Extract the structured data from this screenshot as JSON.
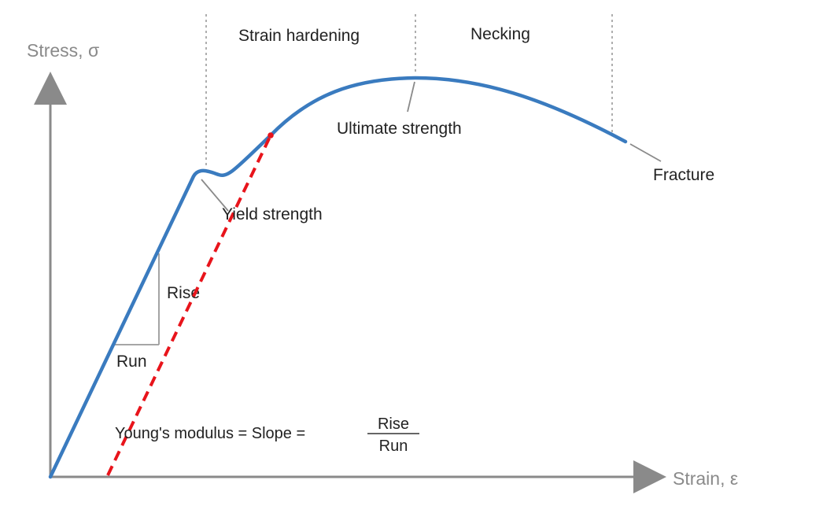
{
  "axes": {
    "y_label": "Stress, σ",
    "x_label": "Strain, ε"
  },
  "regions": {
    "strain_hardening": "Strain hardening",
    "necking": "Necking"
  },
  "annotations": {
    "ultimate_strength": "Ultimate strength",
    "yield_strength": "Yield strength",
    "fracture": "Fracture",
    "rise": "Rise",
    "run": "Run"
  },
  "formula": {
    "lhs": "Young's modulus = Slope =",
    "numerator": "Rise",
    "denominator": "Run"
  },
  "colors": {
    "curve": "#3a7bbf",
    "offset_line": "#e8141b",
    "axis": "#8a8a8a",
    "divider": "#9a9a9a",
    "leader": "#8a8a8a"
  }
}
